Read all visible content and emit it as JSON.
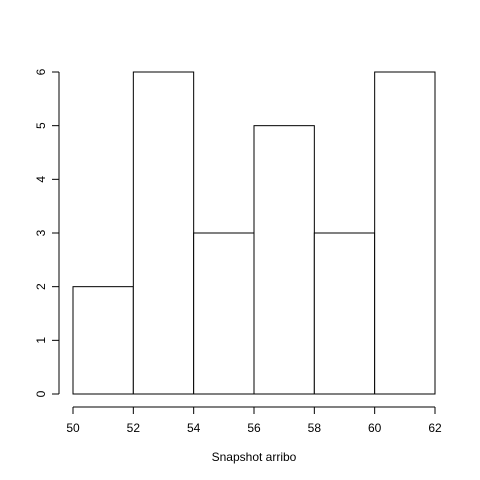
{
  "chart_data": {
    "type": "bar",
    "title": "",
    "xlabel": "Snapshot arribo",
    "ylabel": "",
    "bins": [
      {
        "from": 50,
        "to": 52,
        "count": 2
      },
      {
        "from": 52,
        "to": 54,
        "count": 6
      },
      {
        "from": 54,
        "to": 56,
        "count": 3
      },
      {
        "from": 56,
        "to": 58,
        "count": 5
      },
      {
        "from": 58,
        "to": 60,
        "count": 3
      },
      {
        "from": 60,
        "to": 62,
        "count": 6
      }
    ],
    "xlim": [
      50,
      62
    ],
    "ylim": [
      0,
      6
    ],
    "xticks": [
      "50",
      "52",
      "54",
      "56",
      "58",
      "60",
      "62"
    ],
    "yticks": [
      "0",
      "1",
      "2",
      "3",
      "4",
      "5",
      "6"
    ],
    "grid": false,
    "colors": {
      "bar_fill": "#ffffff",
      "bar_stroke": "#000000"
    }
  }
}
